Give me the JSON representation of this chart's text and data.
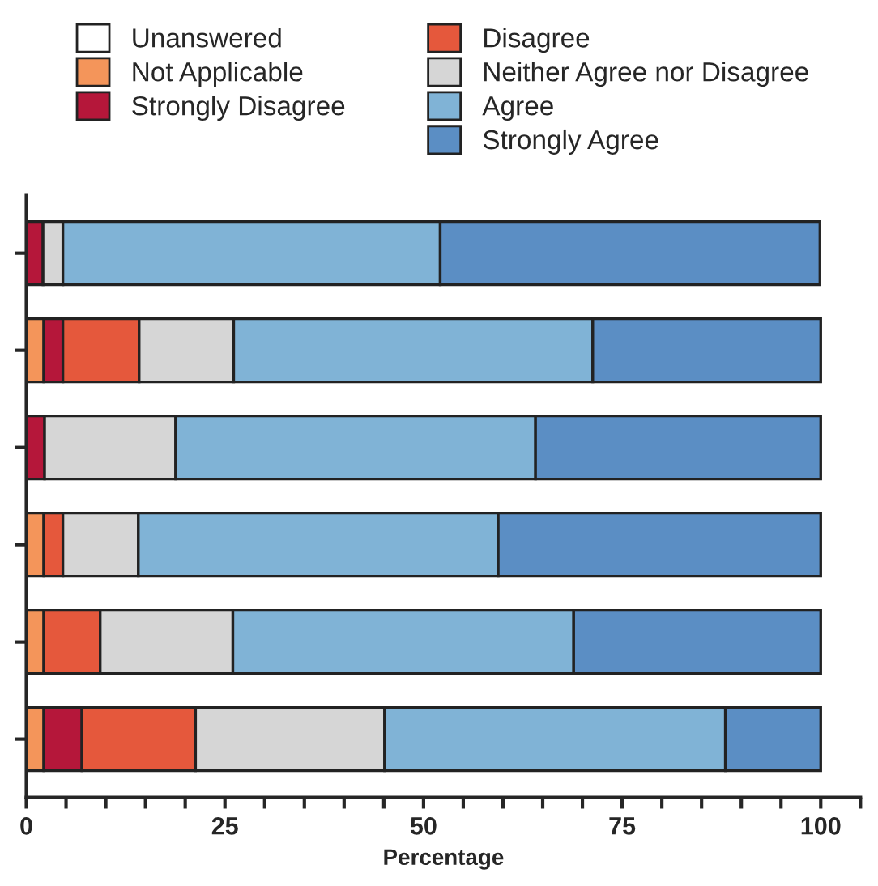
{
  "chart_data": {
    "type": "bar",
    "orientation": "horizontal",
    "stacked": true,
    "xlabel": "Percentage",
    "categories": [
      null,
      null,
      null,
      null,
      null,
      null
    ],
    "series": [
      {
        "name": "Unanswered",
        "color": "#ffffff",
        "values": [
          0,
          0,
          0,
          0,
          0,
          0
        ]
      },
      {
        "name": "Not Applicable",
        "color": "#f4955a",
        "values": [
          0,
          2.2,
          0,
          2.2,
          2.2,
          2.2
        ]
      },
      {
        "name": "Strongly Disagree",
        "color": "#b5173a",
        "values": [
          2.1,
          2.4,
          2.3,
          0,
          0,
          4.8
        ]
      },
      {
        "name": "Disagree",
        "color": "#e5583c",
        "values": [
          0,
          9.6,
          0,
          2.4,
          7.1,
          14.3
        ]
      },
      {
        "name": "Neither Agree nor Disagree",
        "color": "#d6d6d6",
        "values": [
          2.5,
          11.9,
          16.5,
          9.5,
          16.7,
          23.8
        ]
      },
      {
        "name": "Agree",
        "color": "#80b3d6",
        "values": [
          47.5,
          45.2,
          45.3,
          45.3,
          42.9,
          42.9
        ]
      },
      {
        "name": "Strongly Agree",
        "color": "#5b8ec4",
        "values": [
          47.8,
          28.7,
          35.9,
          40.6,
          31.1,
          12.0
        ]
      }
    ],
    "xlim": [
      0,
      105
    ],
    "xticks": [
      0,
      {
        "value": 5,
        "label": null
      },
      {
        "value": 10,
        "label": null
      },
      {
        "value": 15,
        "label": null
      },
      {
        "value": 20,
        "label": null
      },
      25,
      {
        "value": 30,
        "label": null
      },
      {
        "value": 35,
        "label": null
      },
      {
        "value": 40,
        "label": null
      },
      {
        "value": 45,
        "label": null
      },
      50,
      {
        "value": 55,
        "label": null
      },
      {
        "value": 60,
        "label": null
      },
      {
        "value": 65,
        "label": null
      },
      {
        "value": 70,
        "label": null
      },
      75,
      {
        "value": 80,
        "label": null
      },
      {
        "value": 85,
        "label": null
      },
      {
        "value": 90,
        "label": null
      },
      {
        "value": 95,
        "label": null
      },
      100,
      {
        "value": 105,
        "label": null
      }
    ],
    "tick_labels": "x",
    "legend": "top",
    "grid": false
  }
}
